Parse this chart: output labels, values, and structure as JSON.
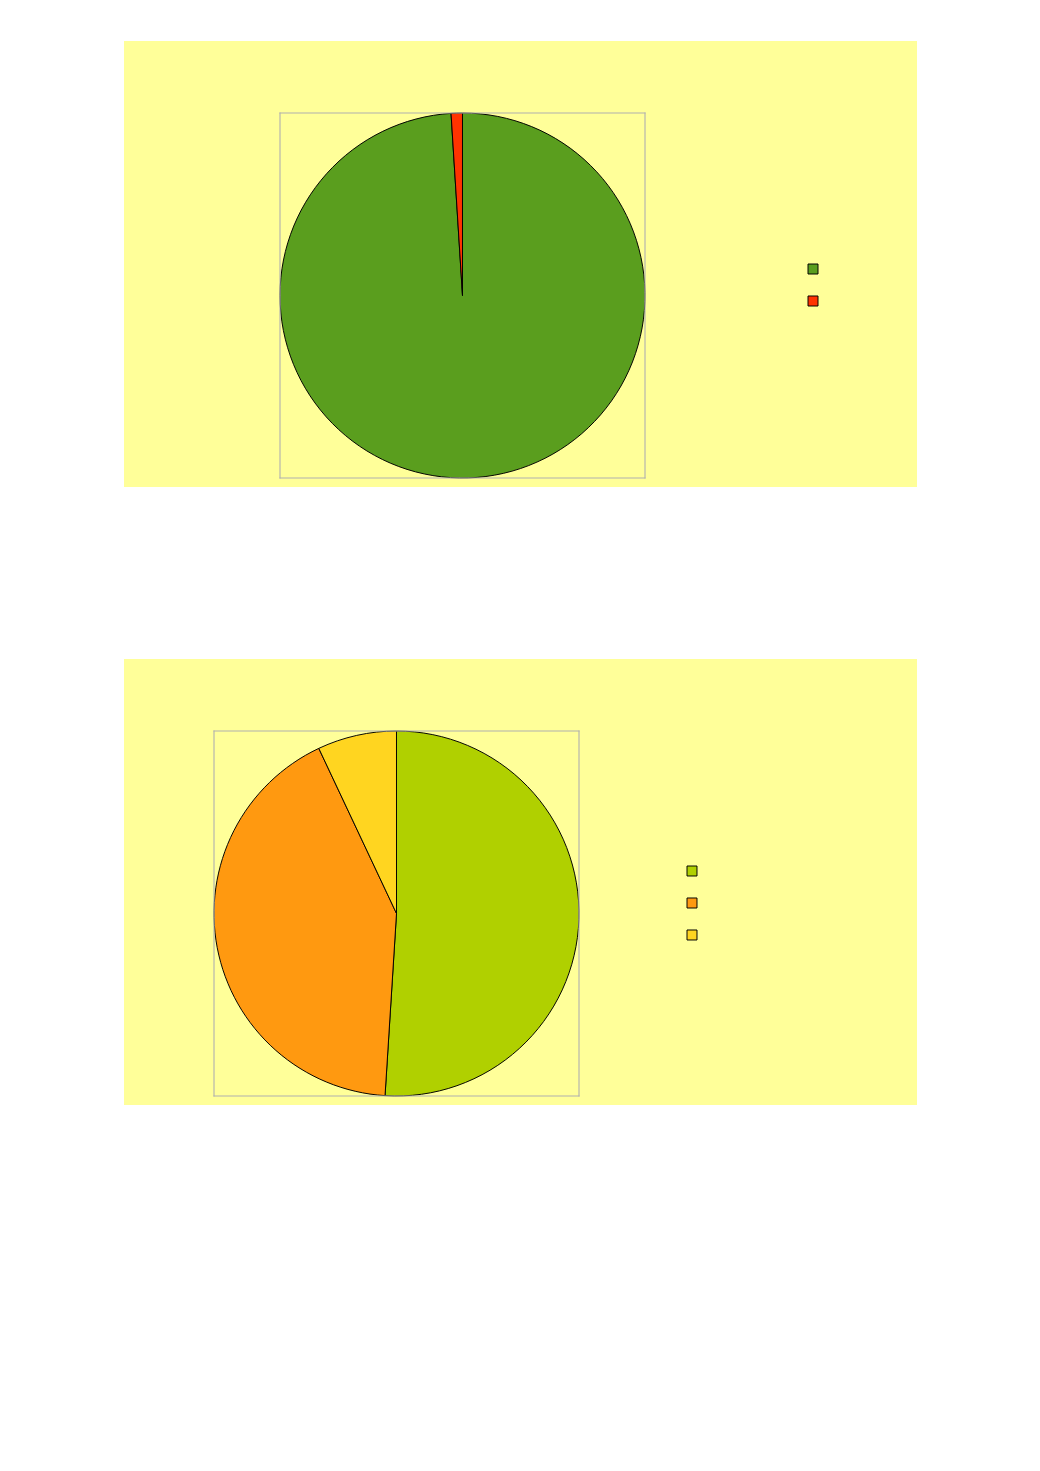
{
  "chart_data": [
    {
      "type": "pie",
      "categories": [
        null,
        null
      ],
      "values": [
        99,
        1
      ],
      "colors": [
        "#5a9e1e",
        "#ff3300"
      ]
    },
    {
      "type": "pie",
      "categories": [
        null,
        null,
        null
      ],
      "values": [
        51,
        42,
        7
      ],
      "colors": [
        "#b0d000",
        "#ff9910",
        "#ffd520"
      ]
    }
  ]
}
